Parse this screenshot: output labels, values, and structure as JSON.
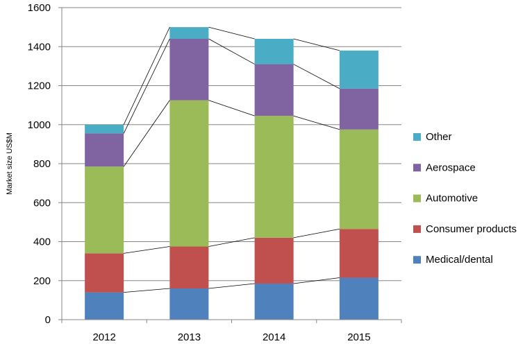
{
  "chart_data": {
    "type": "bar",
    "stacked": true,
    "title": "",
    "xlabel": "",
    "ylabel": "Market size US$M",
    "categories": [
      "2012",
      "2013",
      "2014",
      "2015"
    ],
    "ylim": [
      0,
      1600
    ],
    "yticks": [
      "0",
      "200",
      "400",
      "600",
      "800",
      "1000",
      "1200",
      "1400",
      "1600"
    ],
    "grid": true,
    "legend_position": "right",
    "series_lines": true,
    "series": [
      {
        "name": "Medical/dental",
        "color": "#4f81bd",
        "values": [
          140,
          160,
          185,
          215
        ]
      },
      {
        "name": "Consumer products",
        "color": "#c0504d",
        "values": [
          200,
          215,
          235,
          250
        ]
      },
      {
        "name": "Automotive",
        "color": "#9bbb59",
        "values": [
          445,
          750,
          625,
          510
        ]
      },
      {
        "name": "Aerospace",
        "color": "#8064a2",
        "values": [
          170,
          315,
          265,
          210
        ]
      },
      {
        "name": "Other",
        "color": "#4bacc6",
        "values": [
          45,
          60,
          130,
          195
        ]
      }
    ]
  }
}
